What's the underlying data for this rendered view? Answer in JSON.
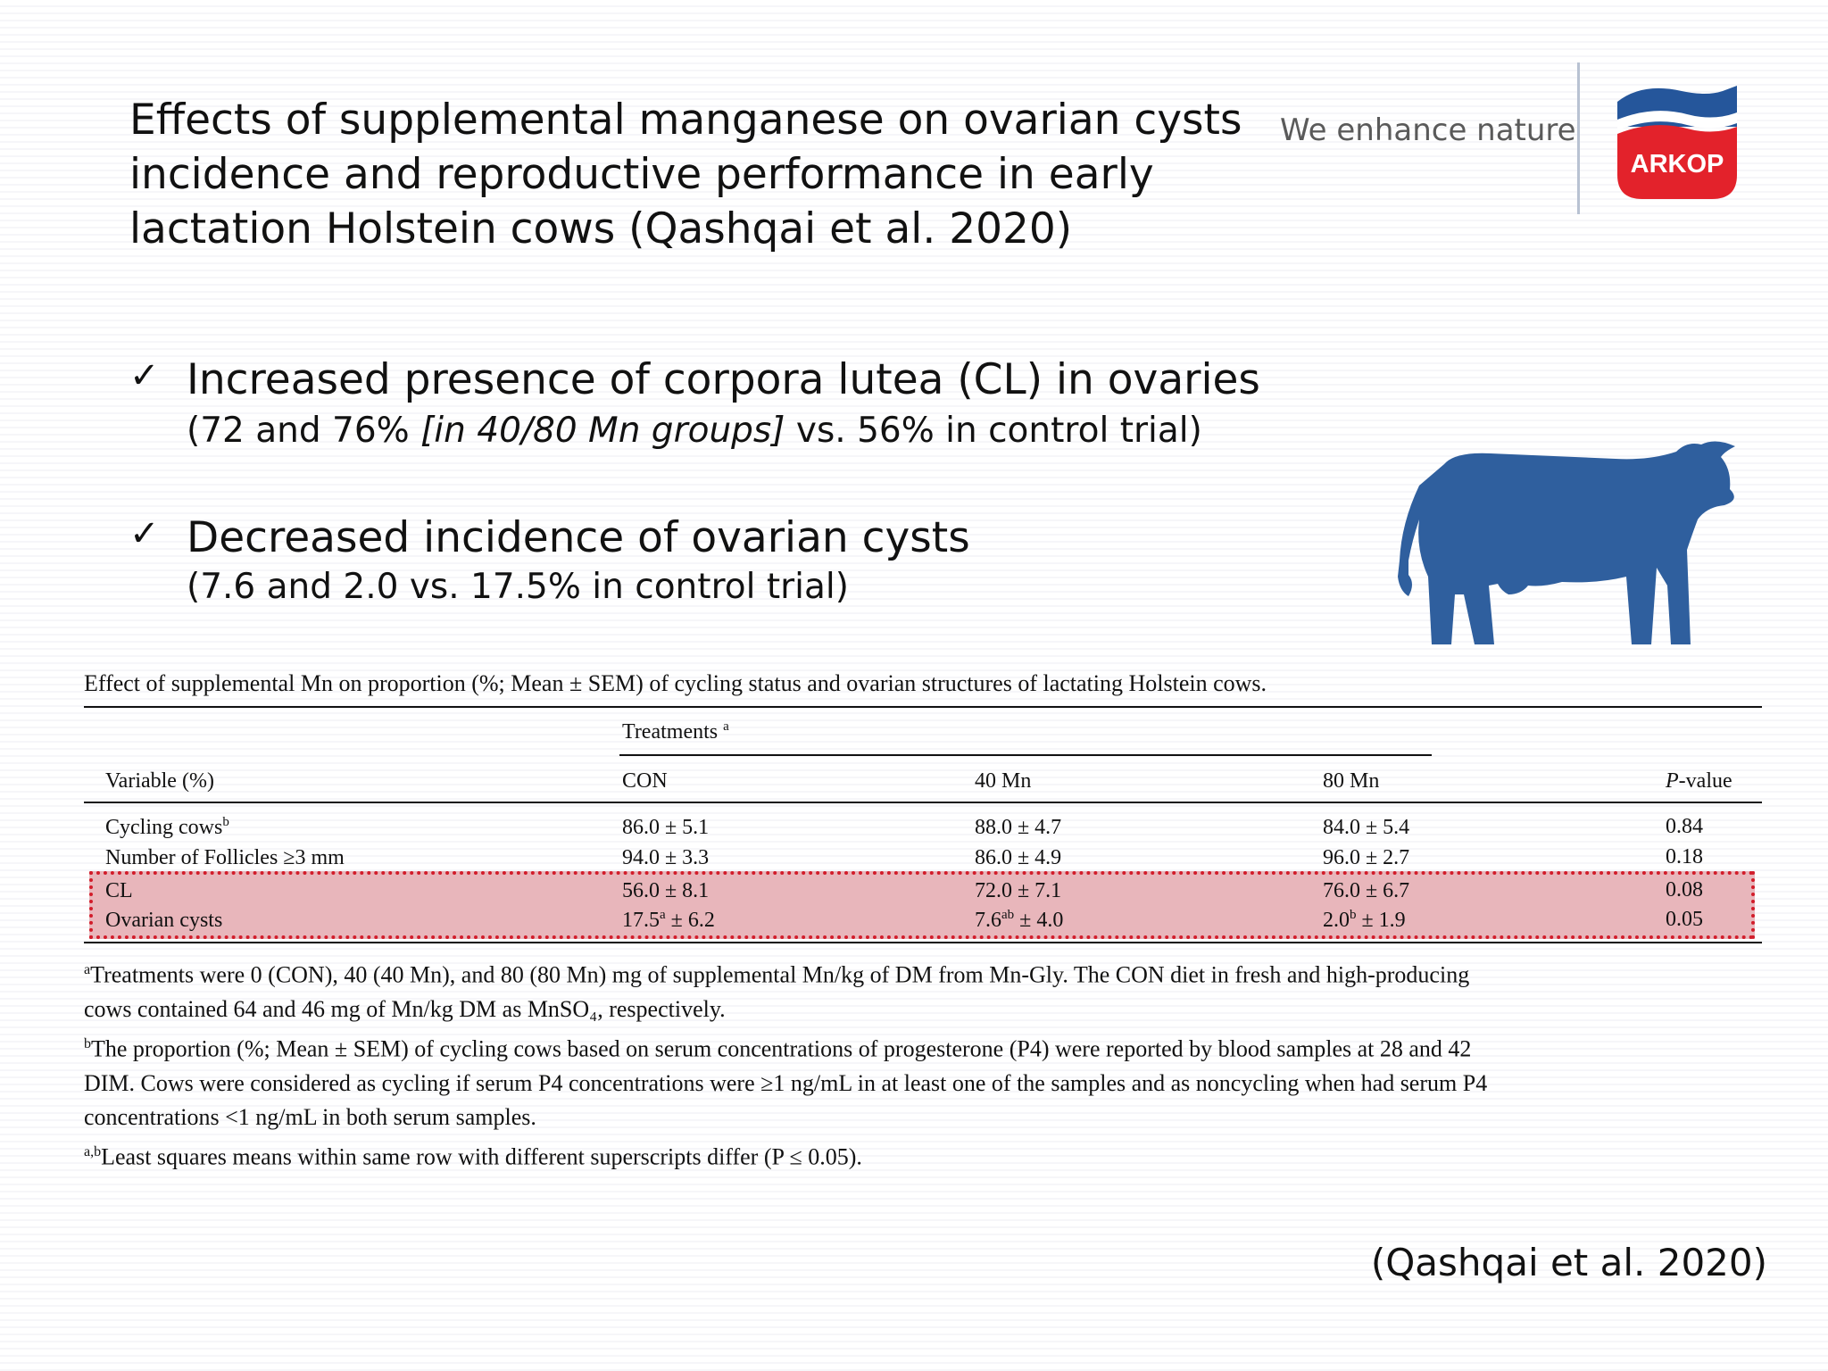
{
  "slide": {
    "title_lines": [
      "Effects of supplemental manganese on ovarian cysts",
      "incidence and reproductive performance in early",
      "lactation Holstein cows (Qashqai et al. 2020)"
    ],
    "tagline": "We enhance nature",
    "logo_text": "ARKOP",
    "brand_colors": {
      "blue": "#25569b",
      "red": "#e3222b"
    },
    "bullets": [
      {
        "check": "✓",
        "main": "Increased presence of corpora lutea (CL) in ovaries",
        "sub_before": "(72 and 76% ",
        "sub_italic": "[in 40/80 Mn groups]",
        "sub_after": " vs. 56% in control trial)"
      },
      {
        "check": "✓",
        "main": "Decreased incidence of ovarian cysts",
        "sub_before": "(7.6 and 2.0 vs. 17.5% in control trial)",
        "sub_italic": "",
        "sub_after": ""
      }
    ],
    "citation": "(Qashqai et al. 2020)"
  },
  "table": {
    "caption": "Effect of supplemental Mn on proportion (%; Mean ± SEM) of cycling status and ovarian structures of lactating Holstein cows.",
    "group_header": "Treatments",
    "group_header_sup": "a",
    "col_variable": "Variable (%)",
    "col_con": "CON",
    "col_40": "40 Mn",
    "col_80": "80 Mn",
    "col_p_italic": "P",
    "col_p_rest": "-value",
    "rows": [
      {
        "variable": "Cycling cows",
        "variable_sup": "b",
        "con": "86.0 ± 5.1",
        "con_sup": "",
        "con_rest": "",
        "mn40": "88.0 ± 4.7",
        "mn40_sup": "",
        "mn40_rest": "",
        "mn80": "84.0 ± 5.4",
        "mn80_sup": "",
        "mn80_rest": "",
        "p": "0.84"
      },
      {
        "variable": "Number of Follicles ≥3 mm",
        "variable_sup": "",
        "con": "94.0 ± 3.3",
        "con_sup": "",
        "con_rest": "",
        "mn40": "86.0 ± 4.9",
        "mn40_sup": "",
        "mn40_rest": "",
        "mn80": "96.0 ± 2.7",
        "mn80_sup": "",
        "mn80_rest": "",
        "p": "0.18"
      },
      {
        "variable": "CL",
        "variable_sup": "",
        "con": "56.0 ± 8.1",
        "con_sup": "",
        "con_rest": "",
        "mn40": "72.0 ± 7.1",
        "mn40_sup": "",
        "mn40_rest": "",
        "mn80": "76.0 ± 6.7",
        "mn80_sup": "",
        "mn80_rest": "",
        "p": "0.08"
      },
      {
        "variable": "Ovarian cysts",
        "variable_sup": "",
        "con": "17.5",
        "con_sup": "a",
        "con_rest": " ± 6.2",
        "mn40": "7.6",
        "mn40_sup": "ab",
        "mn40_rest": " ± 4.0",
        "mn80": "2.0",
        "mn80_sup": "b",
        "mn80_rest": " ± 1.9",
        "p": "0.05"
      }
    ],
    "footnotes": [
      {
        "mark": "a",
        "lines": [
          "Treatments were 0 (CON), 40 (40 Mn), and 80 (80 Mn) mg of supplemental Mn/kg of DM from Mn-Gly. The CON diet in fresh and high-producing",
          "cows contained 64 and 46 mg of Mn/kg DM as MnSO₄, respectively."
        ]
      },
      {
        "mark": "b",
        "lines": [
          "The proportion (%; Mean ± SEM) of cycling cows based on serum concentrations of progesterone (P4) were reported by blood samples at 28 and 42",
          "DIM. Cows were considered as cycling if serum P4 concentrations were ≥1 ng/mL in at least one of the samples and as noncycling when had serum P4",
          "concentrations <1 ng/mL in both serum samples."
        ]
      },
      {
        "mark": "a,b",
        "lines": [
          "Least squares means within same row with different superscripts differ (P ≤ 0.05)."
        ]
      }
    ]
  }
}
